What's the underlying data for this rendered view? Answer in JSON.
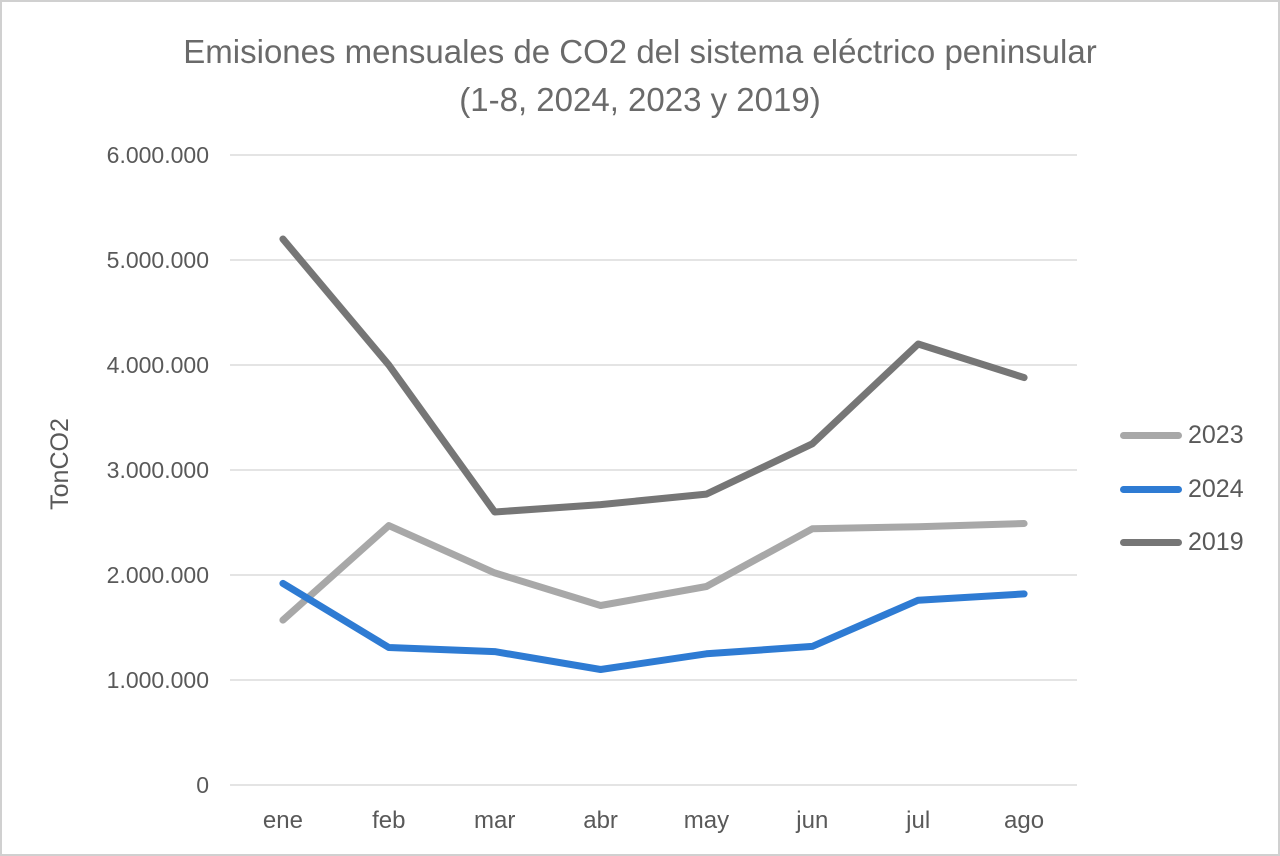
{
  "window": {
    "background": "#FFFFFF",
    "border_color": "#D0D0D0"
  },
  "chart_data": {
    "type": "line",
    "title": "Emisiones mensuales de CO2 del sistema eléctrico peninsular",
    "subtitle": "(1-8, 2024, 2023 y 2019)",
    "ylabel": "TonCO2",
    "xlabel": "",
    "categories": [
      "ene",
      "feb",
      "mar",
      "abr",
      "may",
      "jun",
      "jul",
      "ago"
    ],
    "series": [
      {
        "name": "2023",
        "color": "#A8A8A8",
        "values": [
          1570000,
          2470000,
          2020000,
          1710000,
          1890000,
          2440000,
          2460000,
          2490000
        ]
      },
      {
        "name": "2024",
        "color": "#2E7BD3",
        "values": [
          1920000,
          1310000,
          1270000,
          1100000,
          1250000,
          1320000,
          1760000,
          1820000
        ]
      },
      {
        "name": "2019",
        "color": "#767676",
        "values": [
          5200000,
          4000000,
          2600000,
          2670000,
          2770000,
          3250000,
          4200000,
          3880000
        ]
      }
    ],
    "ylim": [
      0,
      6000000
    ],
    "yticks": {
      "values": [
        6000000,
        5000000,
        4000000,
        3000000,
        2000000,
        1000000,
        0
      ],
      "labels": [
        "6.000.000",
        "5.000.000",
        "4.000.000",
        "3.000.000",
        "2.000.000",
        "1.000.000",
        "0"
      ]
    },
    "grid": true,
    "gridline_color": "#DCDCDC",
    "text_color": "#595959",
    "title_color": "#6A6A6A",
    "legend_position": "right",
    "legend_order": [
      "2023",
      "2024",
      "2019"
    ]
  }
}
